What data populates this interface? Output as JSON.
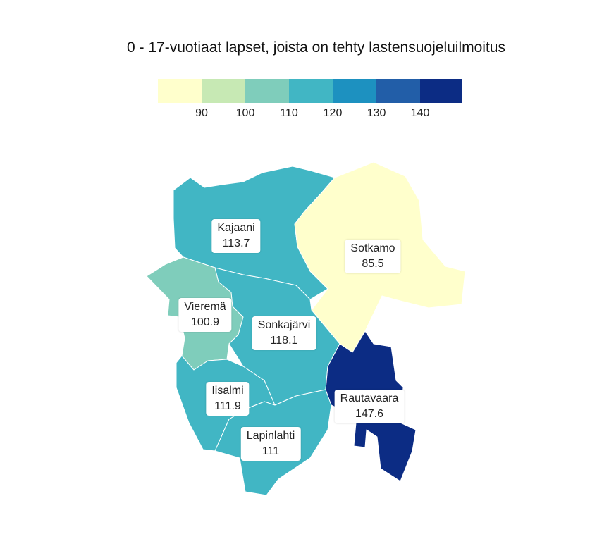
{
  "title": "0 - 17-vuotiaat lapset, joista on tehty lastensuojeluilmoitus",
  "legend": {
    "colors": [
      "#ffffcc",
      "#c7e9b4",
      "#7fcdbb",
      "#41b6c4",
      "#1d91c0",
      "#225ea8",
      "#0c2c84"
    ],
    "ticks": [
      "90",
      "100",
      "110",
      "120",
      "130",
      "140"
    ]
  },
  "regions": [
    {
      "name": "Kajaani",
      "value": "113.7",
      "color": "#41b6c4"
    },
    {
      "name": "Sotkamo",
      "value": "85.5",
      "color": "#ffffcc"
    },
    {
      "name": "Vieremä",
      "value": "100.9",
      "color": "#7fcdbb"
    },
    {
      "name": "Sonkajärvi",
      "value": "118.1",
      "color": "#41b6c4"
    },
    {
      "name": "Iisalmi",
      "value": "111.9",
      "color": "#41b6c4"
    },
    {
      "name": "Lapinlahti",
      "value": "111",
      "color": "#41b6c4"
    },
    {
      "name": "Rautavaara",
      "value": "147.6",
      "color": "#0c2c84"
    }
  ]
}
